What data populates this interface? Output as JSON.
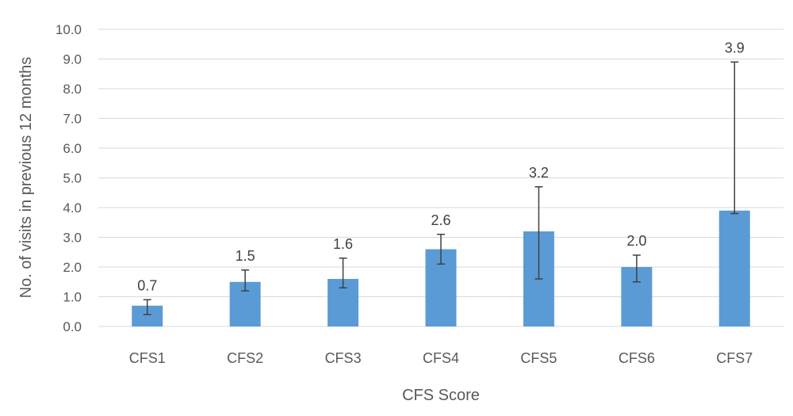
{
  "chart_data": {
    "type": "bar",
    "categories": [
      "CFS1",
      "CFS2",
      "CFS3",
      "CFS4",
      "CFS5",
      "CFS6",
      "CFS7"
    ],
    "values": [
      0.7,
      1.5,
      1.6,
      2.6,
      3.2,
      2.0,
      3.9
    ],
    "data_labels": [
      "0.7",
      "1.5",
      "1.6",
      "2.6",
      "3.2",
      "2.0",
      "3.9"
    ],
    "error_bars": [
      {
        "low": 0.4,
        "high": 0.9
      },
      {
        "low": 1.2,
        "high": 1.9
      },
      {
        "low": 1.3,
        "high": 2.3
      },
      {
        "low": 2.1,
        "high": 3.1
      },
      {
        "low": 1.6,
        "high": 4.7
      },
      {
        "low": 1.5,
        "high": 2.4
      },
      {
        "low": 3.8,
        "high": 8.9
      }
    ],
    "xlabel": "CFS Score",
    "ylabel": "No. of visits in previous 12 months",
    "ylim": [
      0,
      10
    ],
    "yticks": [
      "0.0",
      "1.0",
      "2.0",
      "3.0",
      "4.0",
      "5.0",
      "6.0",
      "7.0",
      "8.0",
      "9.0",
      "10.0"
    ],
    "grid": true,
    "bar_color": "#5b9bd5",
    "legend": "none"
  }
}
